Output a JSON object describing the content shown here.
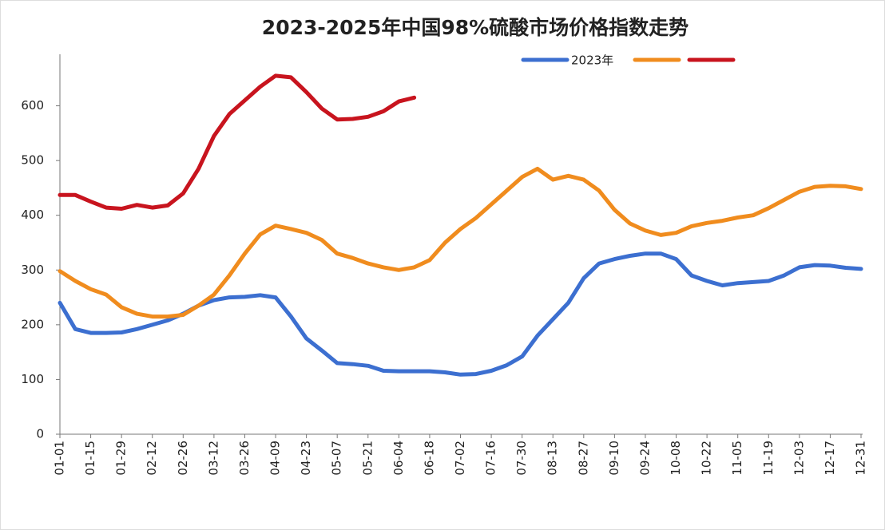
{
  "chart_data": {
    "type": "line",
    "title": "2023-2025年中国98%硫酸市场价格指数走势",
    "categories": [
      "01-01",
      null,
      "01-15",
      null,
      "01-29",
      null,
      "02-12",
      null,
      "02-26",
      null,
      "03-12",
      null,
      "03-26",
      null,
      "04-09",
      null,
      "04-23",
      null,
      "05-07",
      null,
      "05-21",
      null,
      "06-04",
      null,
      "06-18",
      null,
      "07-02",
      null,
      "07-16",
      null,
      "07-30",
      null,
      "08-13",
      null,
      "08-27",
      null,
      "09-10",
      null,
      "09-24",
      null,
      "10-08",
      null,
      "10-22",
      null,
      "11-05",
      null,
      "11-19",
      null,
      "12-03",
      null,
      "12-17",
      null,
      "12-31"
    ],
    "series": [
      {
        "name": "2023年",
        "color": "#3c6fd0",
        "values": [
          240,
          192,
          185,
          185,
          186,
          192,
          200,
          208,
          220,
          235,
          245,
          250,
          251,
          254,
          250,
          215,
          175,
          153,
          130,
          128,
          125,
          116,
          115,
          115,
          115,
          113,
          109,
          110,
          116,
          126,
          142,
          180,
          210,
          240,
          285,
          312,
          320,
          326,
          330,
          330,
          320,
          290,
          280,
          272,
          276,
          278,
          280,
          290,
          305,
          309,
          308,
          304,
          302
        ]
      },
      {
        "color": "#f08c1e",
        "values": [
          298,
          280,
          265,
          255,
          232,
          220,
          215,
          215,
          218,
          235,
          255,
          290,
          330,
          365,
          381,
          375,
          368,
          355,
          330,
          322,
          312,
          305,
          300,
          305,
          318,
          350,
          375,
          395,
          420,
          445,
          470,
          485,
          465,
          472,
          465,
          445,
          410,
          385,
          372,
          364,
          368,
          380,
          386,
          390,
          396,
          400,
          413,
          428,
          443,
          452,
          454,
          453,
          448
        ]
      },
      {
        "color": "#c8141e",
        "values": [
          437,
          437,
          425,
          414,
          412,
          419,
          414,
          418,
          440,
          485,
          545,
          585,
          610,
          635,
          655,
          652,
          625,
          595,
          575,
          576,
          580,
          590,
          608,
          615,
          null,
          null,
          null,
          null,
          null,
          null,
          null,
          null,
          null,
          null,
          null,
          null,
          null,
          null,
          null,
          null,
          null,
          null,
          null,
          null,
          null,
          null,
          null,
          null,
          null,
          null,
          null,
          null,
          null
        ]
      }
    ],
    "ylim": [
      0,
      700
    ],
    "yticks": [
      0,
      100,
      200,
      300,
      400,
      500,
      600
    ],
    "grid": false,
    "legend": "top-right"
  }
}
